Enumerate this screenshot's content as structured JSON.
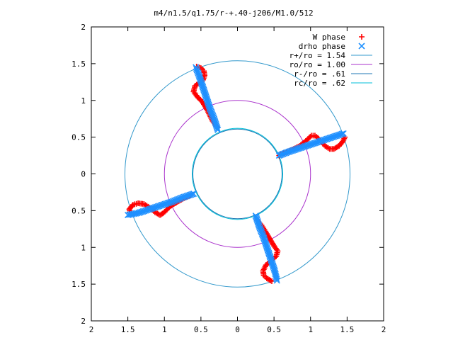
{
  "chart_data": {
    "type": "scatter",
    "title": "m4/n1.5/q1.75/r-+.40-j206/M1.0/512",
    "xlabel": "",
    "ylabel": "",
    "xlim": [
      -2,
      2
    ],
    "ylim": [
      -2,
      2
    ],
    "x_tick_values": [
      -2,
      -1.5,
      -1,
      -0.5,
      0,
      0.5,
      1,
      1.5,
      2
    ],
    "x_tick_labels": [
      "2",
      "1.5",
      "1",
      "0.5",
      "0",
      "0.5",
      "1",
      "1.5",
      "2"
    ],
    "y_tick_values": [
      2,
      1.5,
      1,
      0.5,
      0,
      -0.5,
      -1,
      -1.5,
      -2
    ],
    "y_tick_labels": [
      "2",
      "1.5",
      "1",
      "0.5",
      "0",
      "0.5",
      "1",
      "1.5",
      "2"
    ],
    "grid": false,
    "legend_position": "top-right",
    "series": [
      {
        "name": "W phase",
        "marker": "+",
        "color": "#ff0000",
        "points": [
          [
            0.57,
            0.25
          ],
          [
            0.65,
            0.29
          ],
          [
            0.75,
            0.33
          ],
          [
            0.85,
            0.38
          ],
          [
            0.95,
            0.46
          ],
          [
            1.01,
            0.52
          ],
          [
            1.06,
            0.52
          ],
          [
            1.1,
            0.49
          ],
          [
            1.15,
            0.43
          ],
          [
            1.2,
            0.38
          ],
          [
            1.26,
            0.34
          ],
          [
            1.32,
            0.34
          ],
          [
            1.39,
            0.38
          ],
          [
            1.44,
            0.44
          ],
          [
            1.47,
            0.5
          ],
          [
            -0.28,
            0.64
          ],
          [
            -0.34,
            0.72
          ],
          [
            -0.38,
            0.8
          ],
          [
            -0.42,
            0.88
          ],
          [
            -0.48,
            0.98
          ],
          [
            -0.55,
            1.05
          ],
          [
            -0.6,
            1.12
          ],
          [
            -0.58,
            1.2
          ],
          [
            -0.52,
            1.24
          ],
          [
            -0.47,
            1.28
          ],
          [
            -0.45,
            1.34
          ],
          [
            -0.46,
            1.4
          ],
          [
            -0.5,
            1.44
          ],
          [
            -0.56,
            1.46
          ],
          [
            -0.64,
            -0.29
          ],
          [
            -0.73,
            -0.33
          ],
          [
            -0.82,
            -0.38
          ],
          [
            -0.92,
            -0.44
          ],
          [
            -1.01,
            -0.53
          ],
          [
            -1.06,
            -0.56
          ],
          [
            -1.13,
            -0.52
          ],
          [
            -1.2,
            -0.46
          ],
          [
            -1.28,
            -0.41
          ],
          [
            -1.36,
            -0.4
          ],
          [
            -1.43,
            -0.42
          ],
          [
            -1.48,
            -0.48
          ],
          [
            -1.47,
            -0.52
          ],
          [
            0.27,
            -0.63
          ],
          [
            0.33,
            -0.7
          ],
          [
            0.38,
            -0.78
          ],
          [
            0.44,
            -0.88
          ],
          [
            0.5,
            -0.98
          ],
          [
            0.55,
            -1.05
          ],
          [
            0.53,
            -1.12
          ],
          [
            0.46,
            -1.18
          ],
          [
            0.39,
            -1.24
          ],
          [
            0.35,
            -1.32
          ],
          [
            0.36,
            -1.38
          ],
          [
            0.4,
            -1.42
          ],
          [
            0.47,
            -1.46
          ]
        ]
      },
      {
        "name": "drho phase",
        "marker": "x",
        "color": "#1e90ff",
        "points": [
          [
            0.57,
            0.25
          ],
          [
            0.7,
            0.3
          ],
          [
            0.85,
            0.35
          ],
          [
            1.0,
            0.4
          ],
          [
            1.15,
            0.45
          ],
          [
            1.3,
            0.5
          ],
          [
            1.45,
            0.55
          ],
          [
            -0.27,
            0.6
          ],
          [
            -0.32,
            0.75
          ],
          [
            -0.38,
            0.9
          ],
          [
            -0.43,
            1.05
          ],
          [
            -0.48,
            1.2
          ],
          [
            -0.53,
            1.35
          ],
          [
            -0.57,
            1.45
          ],
          [
            -0.6,
            -0.27
          ],
          [
            -0.75,
            -0.32
          ],
          [
            -0.9,
            -0.38
          ],
          [
            -1.05,
            -0.43
          ],
          [
            -1.2,
            -0.48
          ],
          [
            -1.35,
            -0.53
          ],
          [
            -1.5,
            -0.56
          ],
          [
            0.25,
            -0.57
          ],
          [
            0.3,
            -0.72
          ],
          [
            0.36,
            -0.87
          ],
          [
            0.41,
            -1.02
          ],
          [
            0.46,
            -1.17
          ],
          [
            0.51,
            -1.32
          ],
          [
            0.54,
            -1.45
          ]
        ]
      },
      {
        "name": "r+/ro = 1.54",
        "type": "circle",
        "radius": 1.54,
        "color": "#3399cc"
      },
      {
        "name": "ro/ro = 1.00",
        "type": "circle",
        "radius": 1.0,
        "color": "#aa33cc"
      },
      {
        "name": "r-/ro = .61",
        "type": "circle",
        "radius": 0.61,
        "color": "#1f77b4"
      },
      {
        "name": "rc/ro = .62",
        "type": "circle",
        "radius": 0.62,
        "color": "#00bfd8"
      }
    ]
  }
}
